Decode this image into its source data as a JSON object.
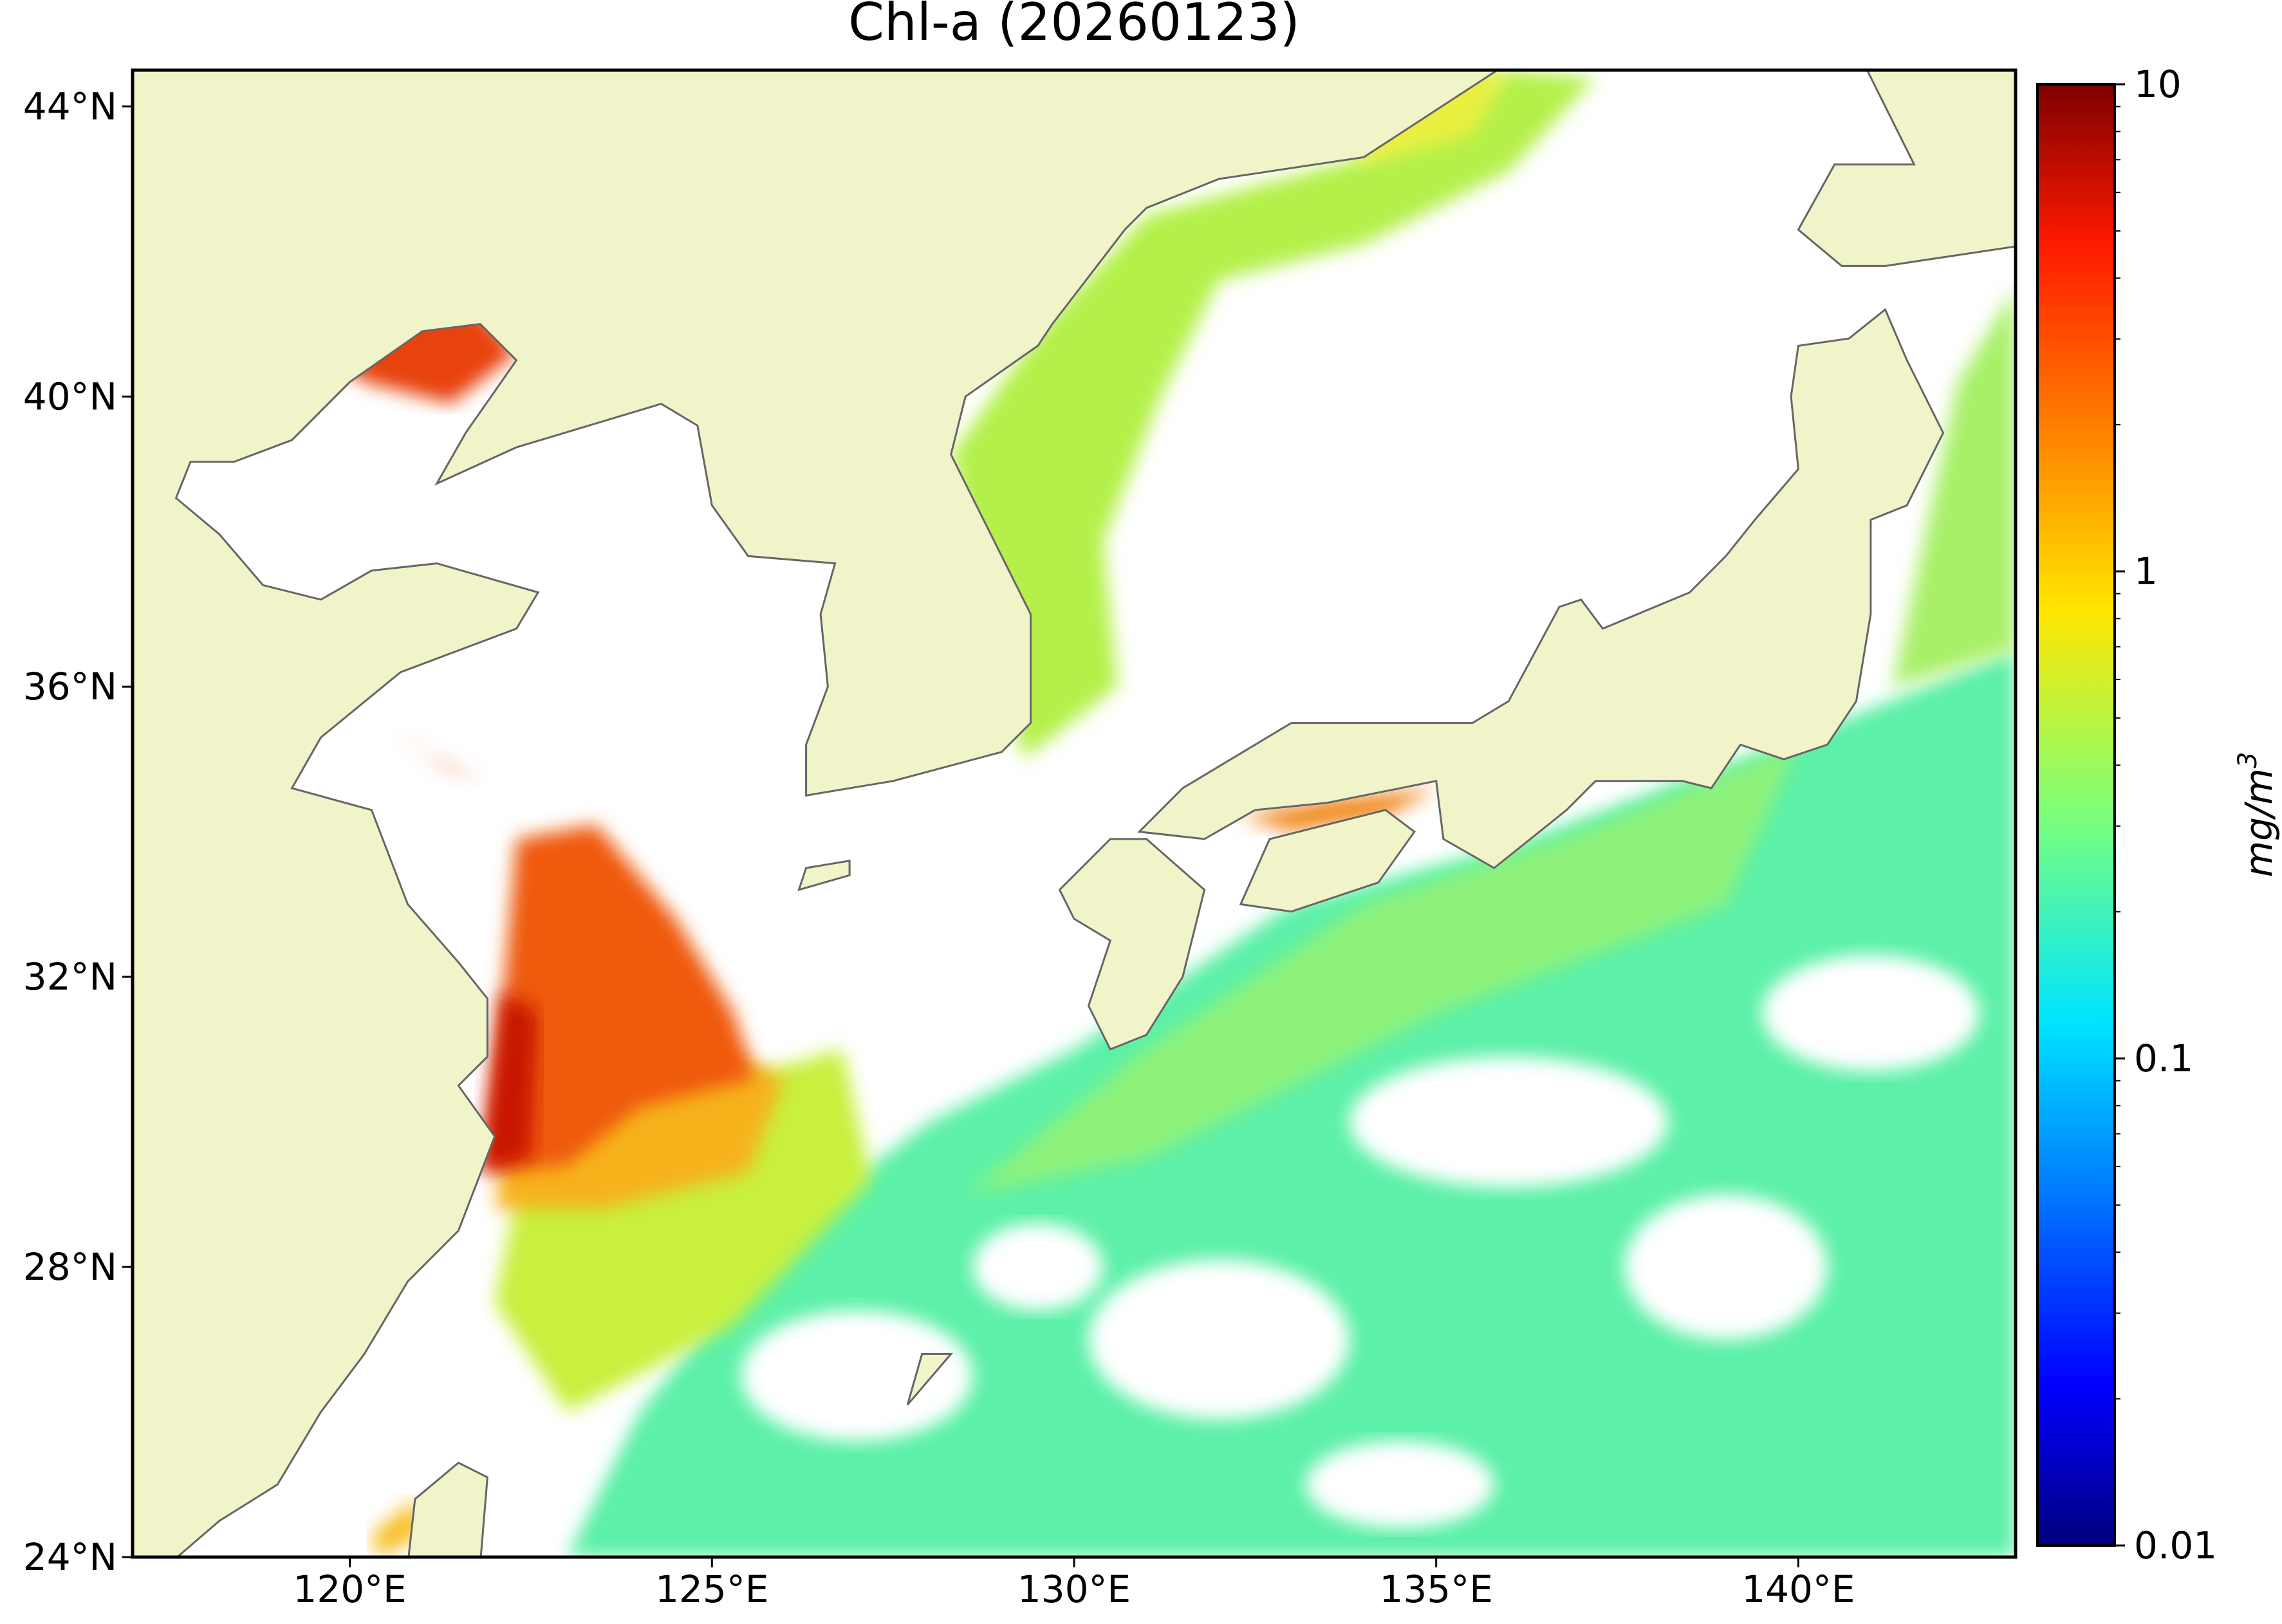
{
  "chart_data": {
    "type": "map",
    "title": "Chl-a (20260123)",
    "xlim": [
      117,
      143
    ],
    "ylim": [
      24,
      44.5
    ],
    "xticks": [
      {
        "value": 120,
        "label": "120°E"
      },
      {
        "value": 125,
        "label": "125°E"
      },
      {
        "value": 130,
        "label": "130°E"
      },
      {
        "value": 135,
        "label": "135°E"
      },
      {
        "value": 140,
        "label": "140°E"
      }
    ],
    "yticks": [
      {
        "value": 24,
        "label": "24°N"
      },
      {
        "value": 28,
        "label": "28°N"
      },
      {
        "value": 32,
        "label": "32°N"
      },
      {
        "value": 36,
        "label": "36°N"
      },
      {
        "value": 40,
        "label": "40°N"
      },
      {
        "value": 44,
        "label": "44°N"
      }
    ],
    "colorbar": {
      "label": "mg/m",
      "label_superscript": "3",
      "scale": "log",
      "lim": [
        0.01,
        10
      ],
      "ticks": [
        0.01,
        0.1,
        1,
        10
      ],
      "colormap": "jet"
    },
    "land_color": "#f0f4c8",
    "coast_color": "#666666"
  }
}
